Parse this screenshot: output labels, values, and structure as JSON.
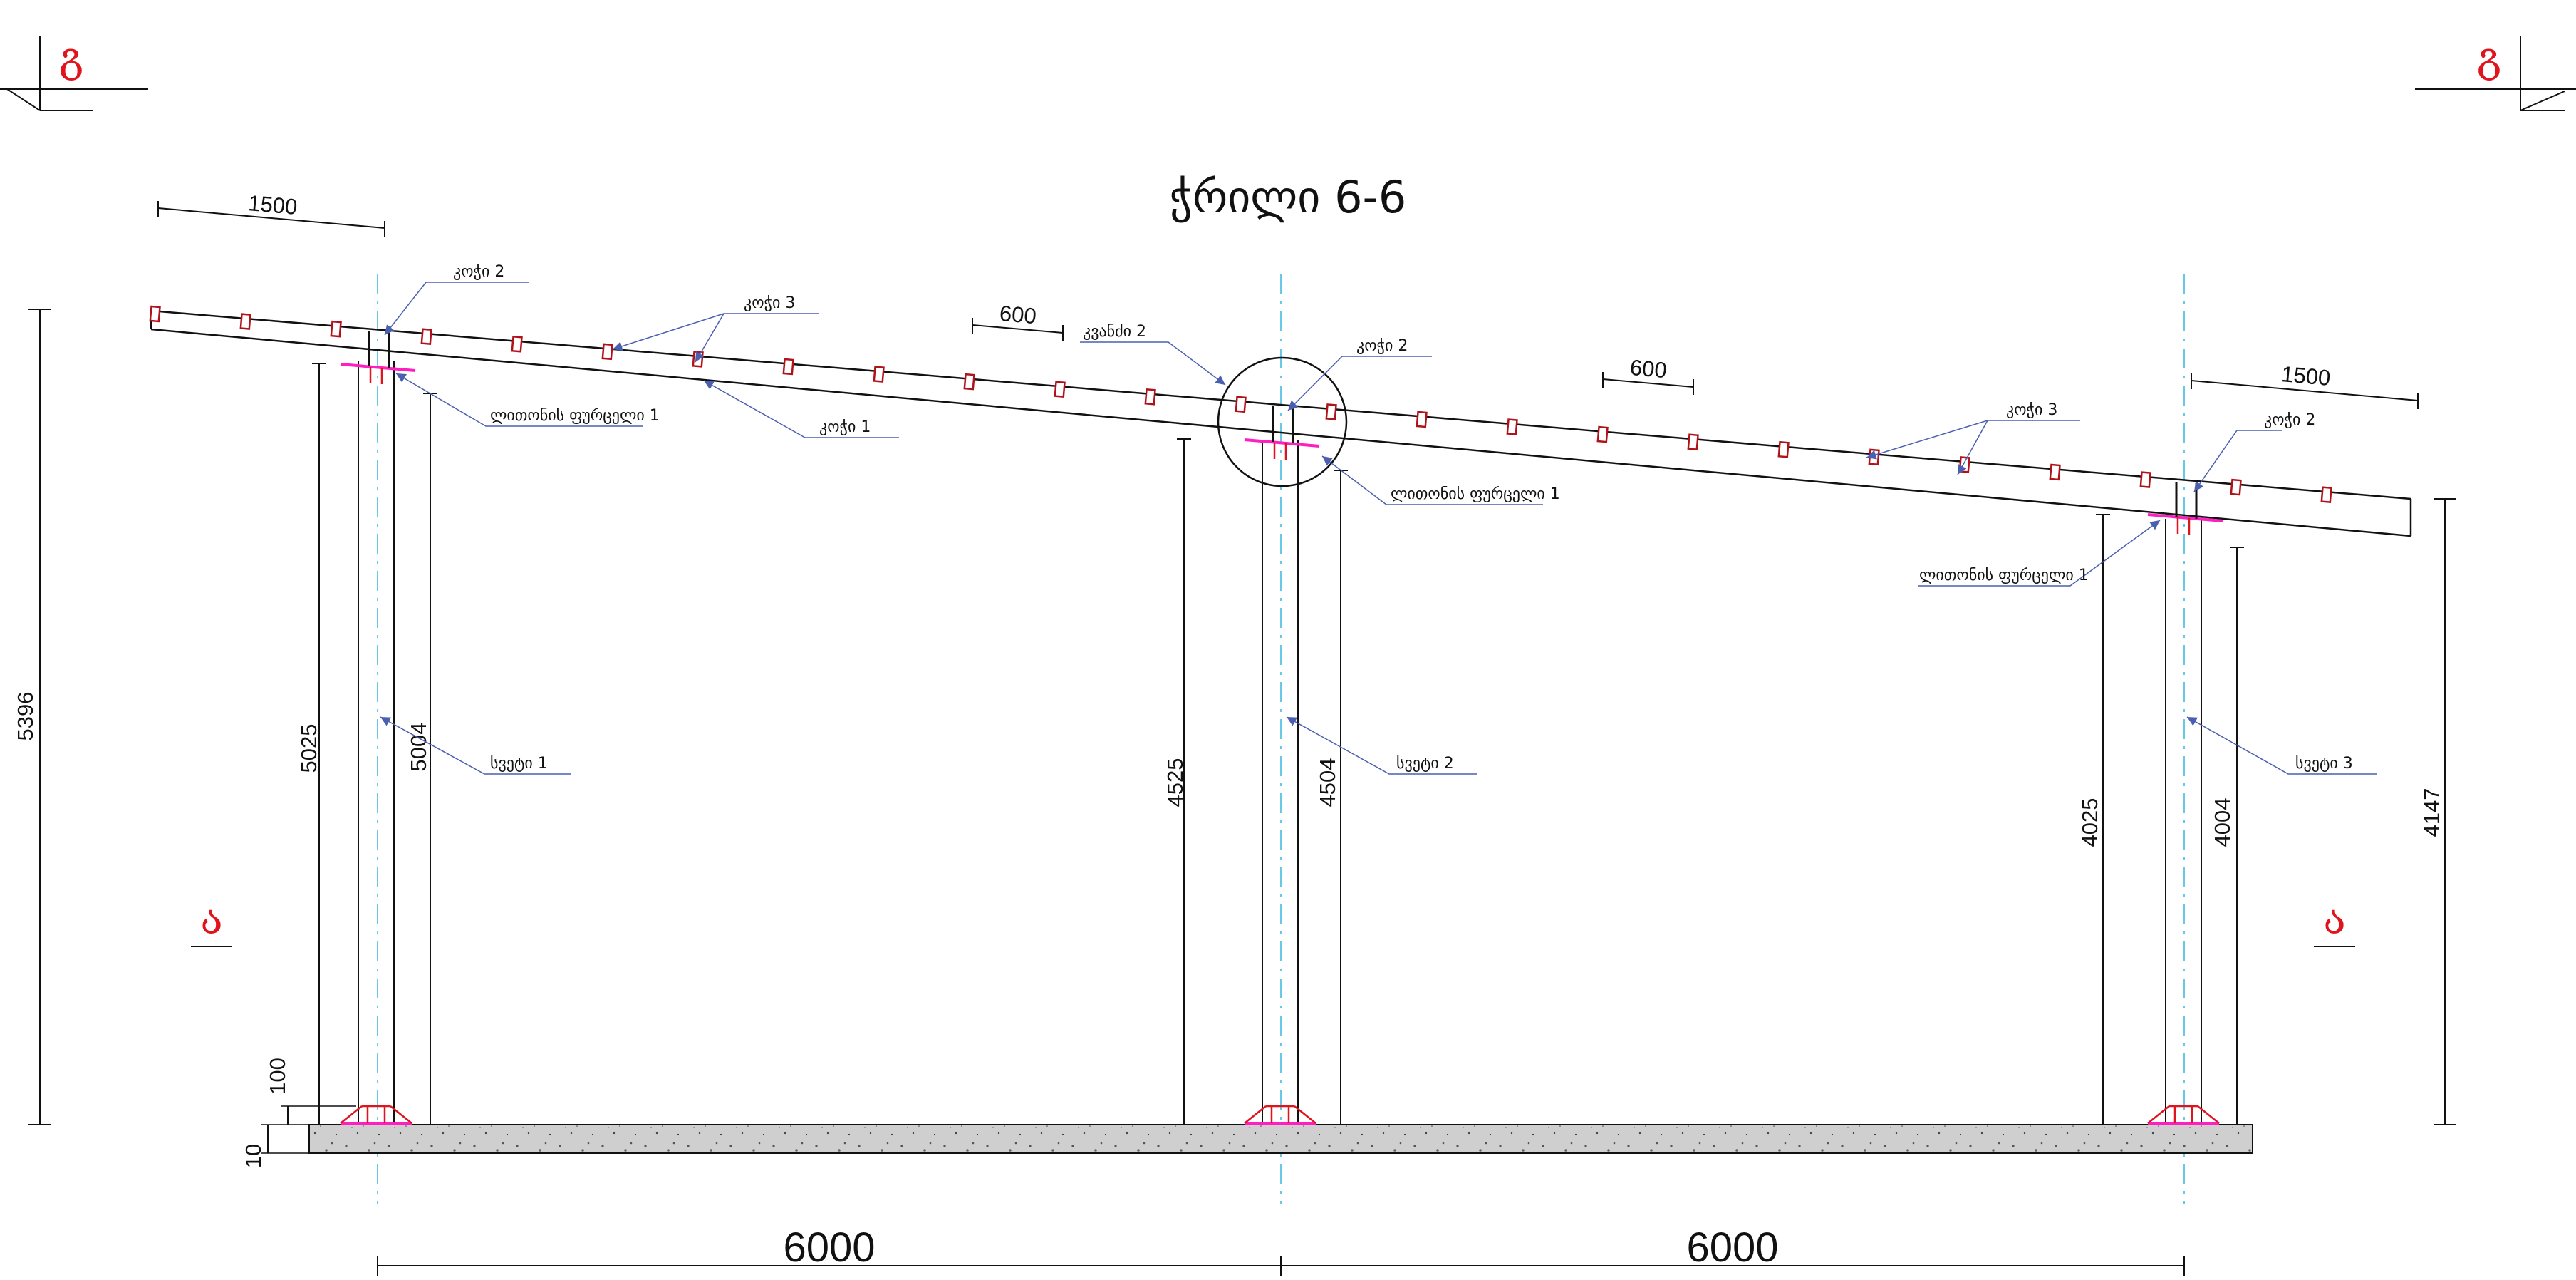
{
  "title": "ჭრილი 6-6",
  "section_marks": {
    "top_left": "გ",
    "top_right": "გ",
    "mid_left": "ა",
    "mid_right": "ა"
  },
  "dimensions": {
    "overhang_left": "1500",
    "overhang_right": "1500",
    "purlin_spacing_1": "600",
    "purlin_spacing_2": "600",
    "total_height": "5396",
    "col1_outer": "5025",
    "col1_inner": "5004",
    "col2_outer": "4525",
    "col2_inner": "4504",
    "col3_outer": "4025",
    "col3_inner": "4004",
    "right_end": "4147",
    "base_100": "100",
    "base_10": "10",
    "span_1": "6000",
    "span_2": "6000"
  },
  "labels": {
    "beam2_left": "კოჭი 2",
    "beam3_left": "კოჭი 3",
    "beam1": "კოჭი 1",
    "node2": "კვანძი 2",
    "beam2_mid": "კოჭი 2",
    "beam3_right": "კოჭი 3",
    "beam2_right": "კოჭი 2",
    "plate_left": "ლითონის ფურცელი 1",
    "plate_mid": "ლითონის ფურცელი 1",
    "plate_right": "ლითონის ფურცელი 1",
    "column1": "სვეტი 1",
    "column2": "სვეტი 2",
    "column3": "სვეტი 3"
  },
  "colors": {
    "section_mark": "#e0141c",
    "axis": "#68c8e8",
    "plate": "#ff1fc0",
    "purlin": "#b0121a",
    "leader": "#4a5fb0"
  }
}
